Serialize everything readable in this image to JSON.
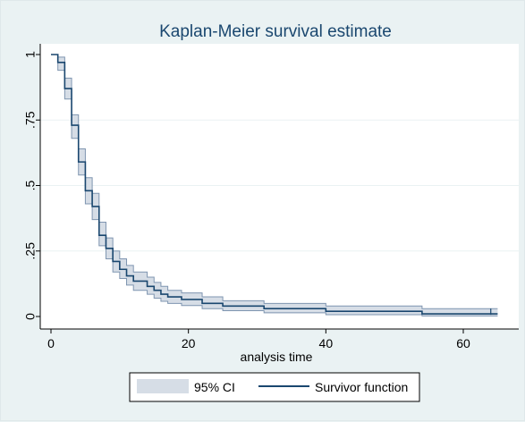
{
  "chart_data": {
    "type": "line",
    "title": "Kaplan-Meier survival estimate",
    "xlabel": "analysis time",
    "ylabel": "",
    "xlim": [
      0,
      66
    ],
    "ylim": [
      0,
      1
    ],
    "xticks": [
      0,
      20,
      40,
      60
    ],
    "xtick_labels": [
      "0",
      "20",
      "40",
      "60"
    ],
    "yticks": [
      0,
      0.25,
      0.5,
      0.75,
      1
    ],
    "ytick_labels": [
      "0",
      ".25",
      ".5",
      ".75",
      "1"
    ],
    "grid": "horizontal",
    "legend": {
      "position": "bottom",
      "entries": [
        "95% CI",
        "Survivor function"
      ]
    },
    "colors": {
      "line": "#1a476f",
      "ci_fill": "#d6dde6",
      "ci_edge": "#7f95b0",
      "background": "#eaf2f3",
      "grid": "#eaf2f3"
    },
    "series": [
      {
        "name": "Survivor function",
        "type": "step",
        "x": [
          0,
          1,
          2,
          3,
          4,
          5,
          6,
          7,
          8,
          9,
          10,
          11,
          12,
          14,
          15,
          16,
          17,
          19,
          22,
          25,
          31,
          40,
          54,
          64,
          65
        ],
        "y": [
          1.0,
          0.97,
          0.87,
          0.73,
          0.59,
          0.48,
          0.42,
          0.31,
          0.26,
          0.21,
          0.18,
          0.155,
          0.135,
          0.115,
          0.1,
          0.085,
          0.075,
          0.065,
          0.05,
          0.04,
          0.03,
          0.02,
          0.01,
          0.01,
          0.01
        ]
      },
      {
        "name": "95% CI",
        "type": "band",
        "x": [
          0,
          1,
          2,
          3,
          4,
          5,
          6,
          7,
          8,
          9,
          10,
          11,
          12,
          14,
          15,
          16,
          17,
          19,
          22,
          25,
          31,
          40,
          54,
          64,
          65
        ],
        "lower": [
          1.0,
          0.94,
          0.83,
          0.68,
          0.54,
          0.43,
          0.37,
          0.27,
          0.22,
          0.17,
          0.145,
          0.12,
          0.1,
          0.085,
          0.07,
          0.058,
          0.05,
          0.042,
          0.03,
          0.022,
          0.014,
          0.007,
          0.002,
          0.002,
          0.002
        ],
        "upper": [
          1.0,
          0.99,
          0.91,
          0.77,
          0.64,
          0.53,
          0.47,
          0.36,
          0.3,
          0.25,
          0.22,
          0.195,
          0.17,
          0.15,
          0.13,
          0.115,
          0.1,
          0.09,
          0.075,
          0.06,
          0.05,
          0.04,
          0.03,
          0.03,
          0.03
        ]
      }
    ],
    "censor_marks_x": [
      64
    ]
  }
}
